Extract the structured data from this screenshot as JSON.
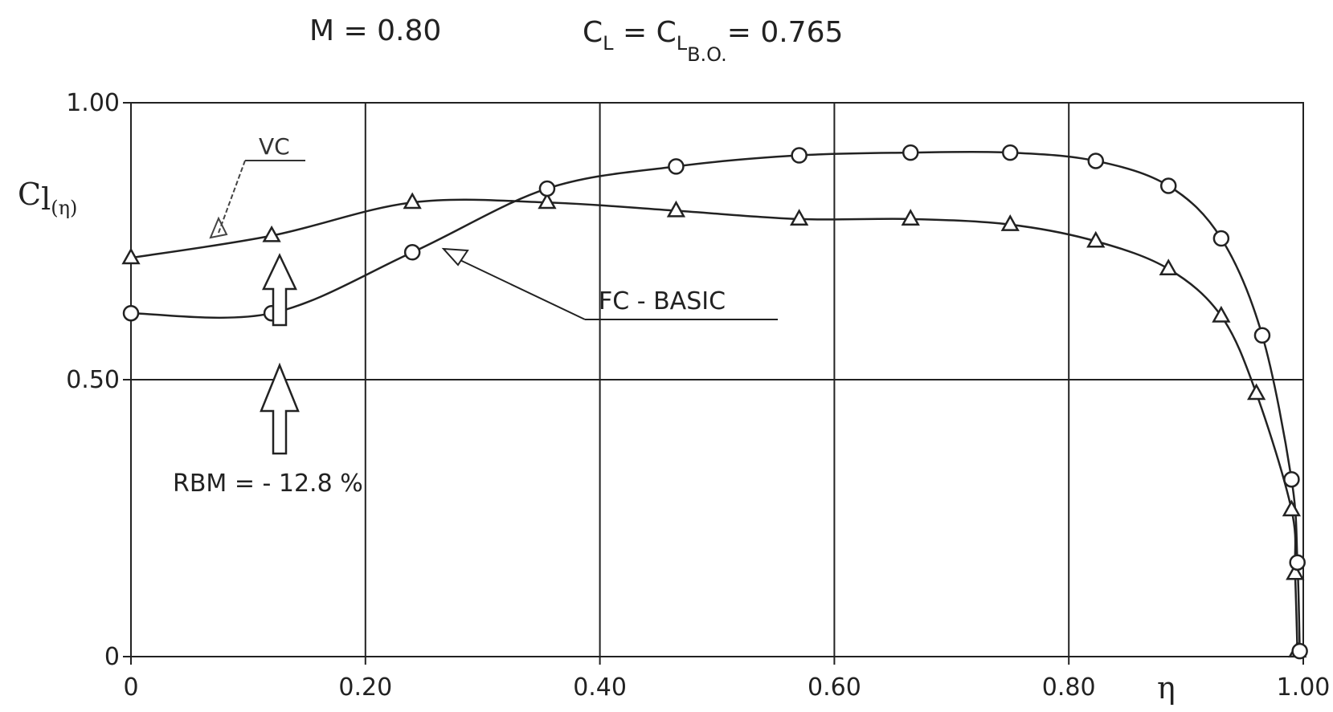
{
  "chart_data": {
    "type": "line",
    "title": {
      "mach": "M = 0.80",
      "cl_main": "C",
      "cl_sub": "L",
      "eq1": " = C",
      "cl_bo_sub": "L",
      "cl_bo_subsub": "B.O.",
      "eq2": "= 0.765"
    },
    "ylabel": {
      "main": "C",
      "sub1": "l",
      "sub2": "(η)"
    },
    "xlabel": "η",
    "xlim": [
      0,
      1.0
    ],
    "ylim": [
      0,
      1.0
    ],
    "x_ticks": [
      {
        "value": 0,
        "label": "0"
      },
      {
        "value": 0.2,
        "label": "0.20"
      },
      {
        "value": 0.4,
        "label": "0.40"
      },
      {
        "value": 0.6,
        "label": "0.60"
      },
      {
        "value": 0.8,
        "label": "0.80"
      },
      {
        "value": 1.0,
        "label": "1.00"
      }
    ],
    "y_ticks": [
      {
        "value": 0,
        "label": "0"
      },
      {
        "value": 0.5,
        "label": "0.50"
      },
      {
        "value": 1.0,
        "label": "1.00"
      }
    ],
    "grid": true,
    "series": [
      {
        "name": "VC",
        "marker": "triangle",
        "points": [
          [
            0.0,
            0.72
          ],
          [
            0.12,
            0.76
          ],
          [
            0.24,
            0.82
          ],
          [
            0.355,
            0.82
          ],
          [
            0.465,
            0.805
          ],
          [
            0.57,
            0.79
          ],
          [
            0.665,
            0.79
          ],
          [
            0.75,
            0.78
          ],
          [
            0.823,
            0.75
          ],
          [
            0.885,
            0.7
          ],
          [
            0.93,
            0.615
          ],
          [
            0.96,
            0.475
          ],
          [
            0.99,
            0.265
          ],
          [
            0.993,
            0.15
          ],
          [
            0.995,
            0.01
          ]
        ]
      },
      {
        "name": "FC - BASIC",
        "marker": "circle",
        "points": [
          [
            0.0,
            0.62
          ],
          [
            0.12,
            0.62
          ],
          [
            0.24,
            0.73
          ],
          [
            0.355,
            0.845
          ],
          [
            0.465,
            0.885
          ],
          [
            0.57,
            0.905
          ],
          [
            0.665,
            0.91
          ],
          [
            0.75,
            0.91
          ],
          [
            0.823,
            0.895
          ],
          [
            0.885,
            0.85
          ],
          [
            0.93,
            0.755
          ],
          [
            0.965,
            0.58
          ],
          [
            0.99,
            0.32
          ],
          [
            0.995,
            0.17
          ],
          [
            0.997,
            0.01
          ]
        ]
      }
    ],
    "annotations": {
      "vc_label": "VC",
      "fc_label": "FC - BASIC",
      "rbm_label": "RBM = - 12.8 %"
    }
  }
}
